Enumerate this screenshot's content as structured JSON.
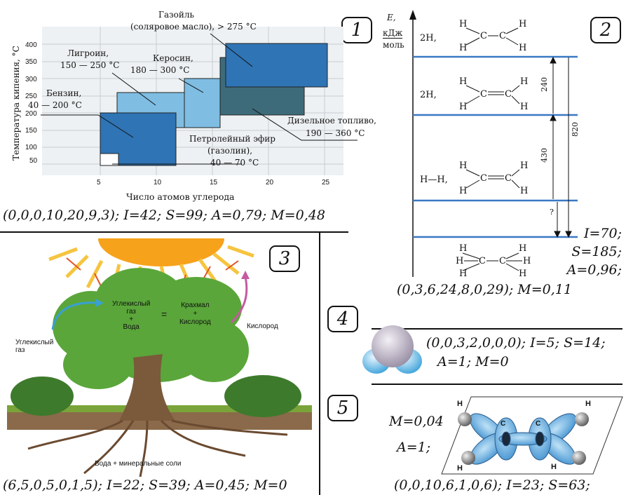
{
  "panel1": {
    "badge": "1",
    "y_label": "Температура кипения, °С",
    "x_label": "Число атомов углерода",
    "y_ticks": [
      "400",
      "350",
      "300",
      "250",
      "200",
      "150",
      "100",
      "50"
    ],
    "x_ticks": [
      "5",
      "10",
      "15",
      "20",
      "25"
    ],
    "labels": {
      "gazoil_1": "Газойль",
      "gazoil_2": "(соляровое масло), > 275 °С",
      "ligroin_1": "Лигроин,",
      "ligroin_2": "150 — 250 °С",
      "kerosin_1": "Керосин,",
      "kerosin_2": "180 — 300  °С",
      "benzin_1": "Бензин,",
      "benzin_2": "40 — 200 °С",
      "diesel_1": "Дизельное топливо,",
      "diesel_2": "190 — 360  °С",
      "ether_1": "Петролейный эфир",
      "ether_2": "(газолин),",
      "ether_3": "40 — 70  °С"
    },
    "formula": "(0,0,0,10,20,9,3); I=42; S=99; A=0,79; M=0,48"
  },
  "panel2": {
    "badge": "2",
    "axis_e": "E,",
    "axis_unit_1": "кДж",
    "axis_unit_2": "моль",
    "level1_prefix": "2H,",
    "level2_prefix": "2H,",
    "level3_prefix": "H—H,",
    "val_240": "240",
    "val_820": "820",
    "val_430": "430",
    "val_q": "?",
    "I": "I=70;",
    "S": "S=185;",
    "A": "A=0,96;",
    "formula": "(0,3,6,24,8,0,29);  M=0,11"
  },
  "panel3": {
    "badge": "3",
    "co2_in_1": "Углекислый",
    "co2_in_2": "газ",
    "eq_left_1": "Углекислый",
    "eq_left_2": "газ",
    "eq_left_3": "+",
    "eq_left_4": "Вода",
    "eq_equals": "=",
    "eq_right_1": "Крахмал",
    "eq_right_2": "+",
    "eq_right_3": "Кислород",
    "oxygen": "Кислород",
    "water": "Вода + минеральные соли",
    "formula": "(6,5,0,5,0,1,5); I=22; S=39; A=0,45; M=0"
  },
  "panel4": {
    "badge": "4",
    "line1": "(0,0,3,2,0,0,0); I=5; S=14;",
    "line2": "A=1; M=0"
  },
  "panel5": {
    "badge": "5",
    "m": "M=0,04",
    "a": "A=1;",
    "formula": "(0,0,10,6,1,0,6); I=23; S=63;",
    "atom_h": "H",
    "atom_c": "C"
  },
  "colors": {
    "dark_blue": "#2f74b5",
    "light_blue": "#7fbde3",
    "slate": "#3d6b7a",
    "level_line": "#3a78c4",
    "sun": "#f7a21b"
  }
}
